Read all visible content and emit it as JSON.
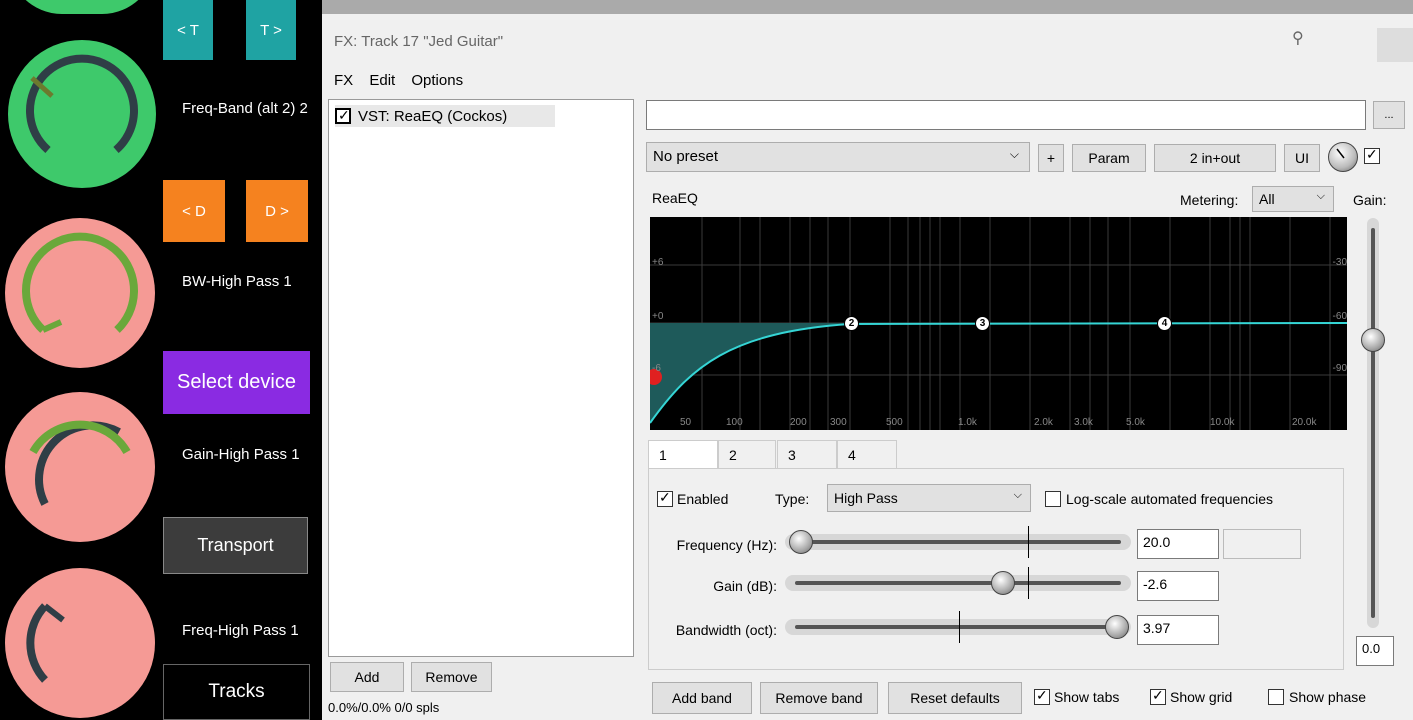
{
  "left_panel": {
    "top_buttons": {
      "prev_t": "< T",
      "next_t": "T >",
      "prev_d": "< D",
      "next_d": "D >"
    },
    "labels": {
      "freq_band": "Freq-Band (alt 2) 2",
      "bw_high_pass": "BW-High Pass 1",
      "gain_high_pass": "Gain-High Pass 1",
      "freq_high_pass": "Freq-High Pass 1"
    },
    "select_device": "Select device",
    "transport": "Transport",
    "tracks": "Tracks",
    "colors": {
      "green": "#3ec96b",
      "pink": "#f59a95",
      "purple": "#8a2be2",
      "teal": "#1fa3a3",
      "orange": "#f5821f"
    }
  },
  "fx_window": {
    "title": "FX: Track 17 \"Jed Guitar\"",
    "menu": [
      "FX",
      "Edit",
      "Options"
    ],
    "fx_list": [
      {
        "label": "VST: ReaEQ (Cockos)",
        "enabled": true
      }
    ],
    "add_label": "Add",
    "remove_label": "Remove",
    "status": "0.0%/0.0% 0/0 spls",
    "browse_label": "...",
    "preset": "No preset",
    "plus_label": "+",
    "param_label": "Param",
    "io_label": "2 in+out",
    "ui_label": "UI",
    "plugin_name": "ReaEQ",
    "metering_label": "Metering:",
    "metering_value": "All",
    "gain_label": "Gain:",
    "gain_value": "0.0",
    "graph": {
      "db_labels": [
        "+6",
        "+0",
        "-6"
      ],
      "right_labels": [
        "-30",
        "-60",
        "-90"
      ],
      "freq_labels": [
        "50",
        "100",
        "200",
        "300",
        "500",
        "1.0k",
        "2.0k",
        "3.0k",
        "5.0k",
        "10.0k",
        "20.0k"
      ],
      "band_nodes": [
        "2",
        "3",
        "4"
      ]
    },
    "tabs": [
      "1",
      "2",
      "3",
      "4"
    ],
    "enabled_label": "Enabled",
    "type_label": "Type:",
    "type_value": "High Pass",
    "log_scale_label": "Log-scale automated frequencies",
    "params": [
      {
        "label": "Frequency (Hz):",
        "value": "20.0",
        "level": 0.0
      },
      {
        "label": "Gain (dB):",
        "value": "-2.6",
        "level": 0.64
      },
      {
        "label": "Bandwidth (oct):",
        "value": "3.97",
        "level": 1.0
      }
    ],
    "add_band": "Add band",
    "remove_band": "Remove band",
    "reset_defaults": "Reset defaults",
    "show_tabs": "Show tabs",
    "show_grid": "Show grid",
    "show_phase": "Show phase"
  }
}
